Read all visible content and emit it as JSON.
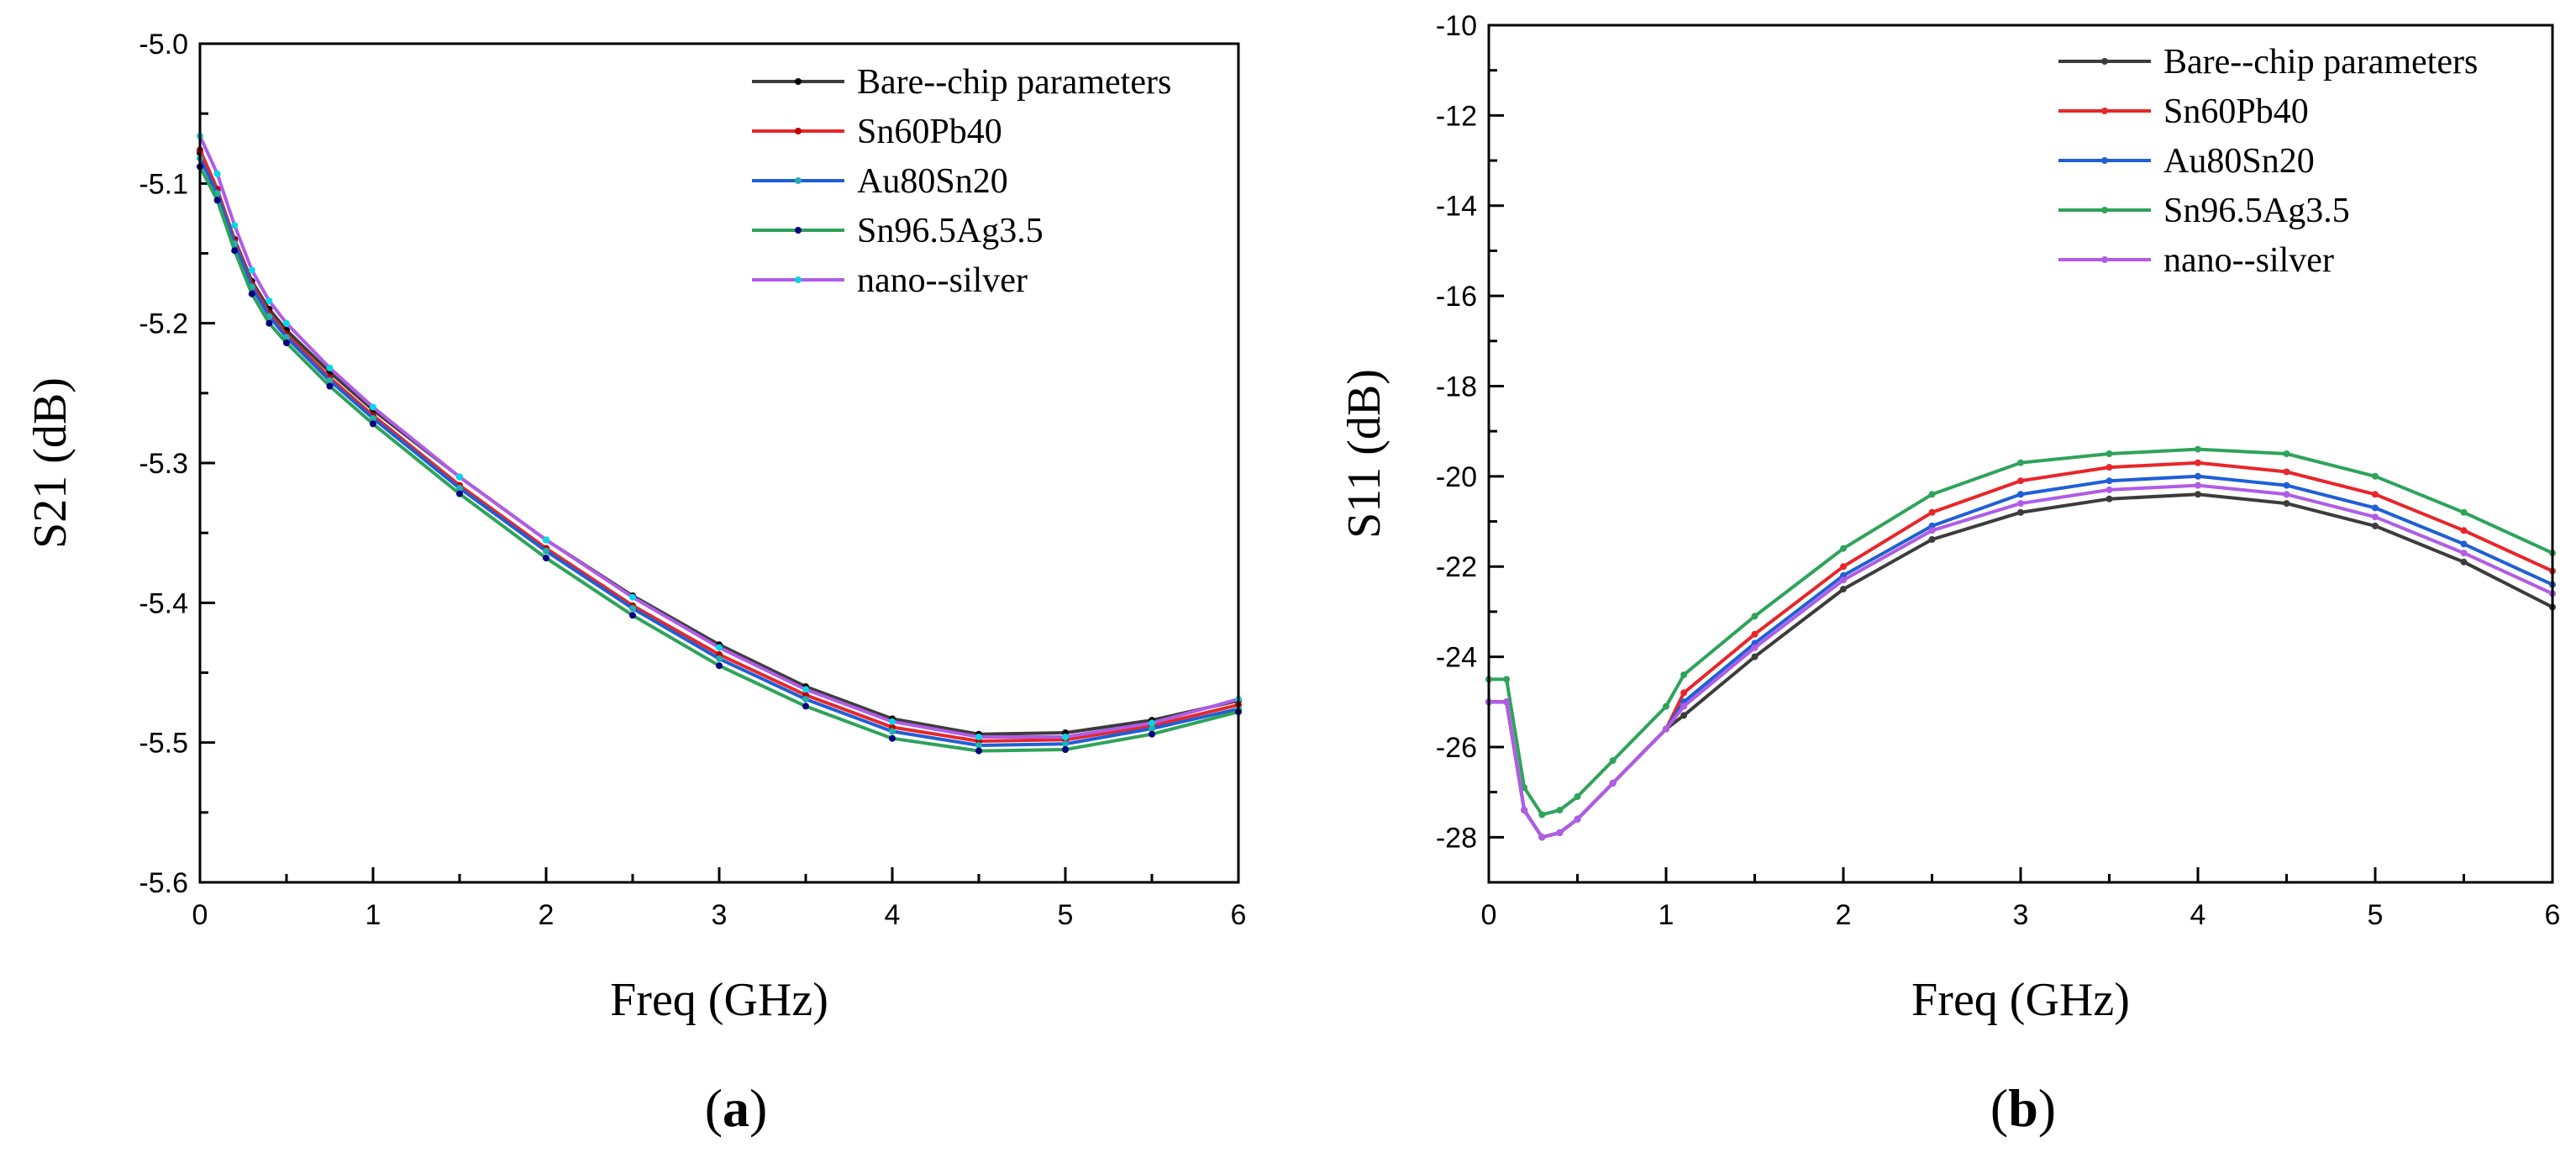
{
  "chart_data": [
    {
      "type": "line",
      "panel": "a",
      "caption_label": "a",
      "xlabel": "Freq (GHz)",
      "ylabel": "S21 (dB)",
      "xlim": [
        0,
        6
      ],
      "ylim": [
        -5.6,
        -5.0
      ],
      "xticks": [
        0,
        1,
        2,
        3,
        4,
        5,
        6
      ],
      "xtick_labels": [
        "0",
        "1",
        "2",
        "3",
        "4",
        "5",
        "6"
      ],
      "yticks": [
        -5.6,
        -5.5,
        -5.4,
        -5.3,
        -5.2,
        -5.1,
        -5.0
      ],
      "ytick_labels": [
        "-5.6",
        "-5.5",
        "-5.4",
        "-5.3",
        "-5.2",
        "-5.1",
        "-5.0"
      ],
      "legend_position": "top-right",
      "x": [
        0,
        0.1,
        0.2,
        0.3,
        0.4,
        0.5,
        0.75,
        1,
        1.5,
        2,
        2.5,
        3,
        3.5,
        4,
        4.5,
        5,
        5.5,
        6
      ],
      "series": [
        {
          "name": "Bare--chip parameters",
          "color": "#3c3c3c",
          "marker_color": "#000000",
          "values": [
            -5.078,
            -5.105,
            -5.14,
            -5.17,
            -5.19,
            -5.205,
            -5.235,
            -5.262,
            -5.31,
            -5.355,
            -5.395,
            -5.43,
            -5.46,
            -5.483,
            -5.494,
            -5.493,
            -5.484,
            -5.47
          ]
        },
        {
          "name": "Sn60Pb40",
          "color": "#e8262a",
          "marker_color": "#c00000",
          "values": [
            -5.076,
            -5.104,
            -5.141,
            -5.172,
            -5.193,
            -5.208,
            -5.239,
            -5.266,
            -5.316,
            -5.361,
            -5.402,
            -5.437,
            -5.466,
            -5.489,
            -5.499,
            -5.498,
            -5.488,
            -5.473
          ]
        },
        {
          "name": "Au80Sn20",
          "color": "#1f5fd6",
          "marker_color": "#22b0b0",
          "values": [
            -5.082,
            -5.107,
            -5.143,
            -5.174,
            -5.195,
            -5.21,
            -5.241,
            -5.268,
            -5.318,
            -5.363,
            -5.404,
            -5.44,
            -5.469,
            -5.492,
            -5.502,
            -5.501,
            -5.49,
            -5.476
          ]
        },
        {
          "name": "Sn96.5Ag3.5",
          "color": "#2ea35a",
          "marker_color": "#000080",
          "values": [
            -5.088,
            -5.112,
            -5.148,
            -5.179,
            -5.2,
            -5.214,
            -5.245,
            -5.272,
            -5.322,
            -5.368,
            -5.409,
            -5.445,
            -5.474,
            -5.497,
            -5.506,
            -5.505,
            -5.494,
            -5.478
          ]
        },
        {
          "name": "nano--silver",
          "color": "#b05ce6",
          "marker_color": "#00d8e8",
          "values": [
            -5.066,
            -5.093,
            -5.13,
            -5.162,
            -5.184,
            -5.2,
            -5.232,
            -5.26,
            -5.31,
            -5.355,
            -5.396,
            -5.432,
            -5.462,
            -5.485,
            -5.496,
            -5.496,
            -5.486,
            -5.469
          ]
        }
      ]
    },
    {
      "type": "line",
      "panel": "b",
      "caption_label": "b",
      "xlabel": "Freq (GHz)",
      "ylabel": "S11 (dB)",
      "xlim": [
        0,
        6
      ],
      "ylim": [
        -29,
        -10
      ],
      "xticks": [
        0,
        1,
        2,
        3,
        4,
        5,
        6
      ],
      "xtick_labels": [
        "0",
        "1",
        "2",
        "3",
        "4",
        "5",
        "6"
      ],
      "yticks": [
        -28,
        -26,
        -24,
        -22,
        -20,
        -18,
        -16,
        -14,
        -12,
        -10
      ],
      "ytick_labels": [
        "-28",
        "-26",
        "-24",
        "-22",
        "-20",
        "-18",
        "-16",
        "-14",
        "-12",
        "-10"
      ],
      "legend_position": "top-right",
      "x": [
        0,
        0.1,
        0.2,
        0.3,
        0.4,
        0.5,
        0.7,
        1.0,
        1.1,
        1.5,
        2,
        2.5,
        3,
        3.5,
        4,
        4.5,
        5,
        5.5,
        6
      ],
      "series": [
        {
          "name": "Bare--chip parameters",
          "color": "#3c3c3c",
          "marker_color": "#3c3c3c",
          "values": [
            -25.0,
            -25.0,
            -27.4,
            -28.0,
            -27.9,
            -27.6,
            -26.8,
            -25.6,
            -25.3,
            -24.0,
            -22.5,
            -21.4,
            -20.8,
            -20.5,
            -20.4,
            -20.6,
            -21.1,
            -21.9,
            -22.9
          ]
        },
        {
          "name": "Sn60Pb40",
          "color": "#e8262a",
          "marker_color": "#e8262a",
          "values": [
            -25.0,
            -25.0,
            -27.4,
            -28.0,
            -27.9,
            -27.6,
            -26.8,
            -25.6,
            -24.8,
            -23.5,
            -22.0,
            -20.8,
            -20.1,
            -19.8,
            -19.7,
            -19.9,
            -20.4,
            -21.2,
            -22.1
          ]
        },
        {
          "name": "Au80Sn20",
          "color": "#1f5fd6",
          "marker_color": "#1f5fd6",
          "values": [
            -25.0,
            -25.0,
            -27.4,
            -28.0,
            -27.9,
            -27.6,
            -26.8,
            -25.6,
            -25.0,
            -23.7,
            -22.2,
            -21.1,
            -20.4,
            -20.1,
            -20.0,
            -20.2,
            -20.7,
            -21.5,
            -22.4
          ]
        },
        {
          "name": "Sn96.5Ag3.5",
          "color": "#2ea35a",
          "marker_color": "#2ea35a",
          "values": [
            -24.5,
            -24.5,
            -26.9,
            -27.5,
            -27.4,
            -27.1,
            -26.3,
            -25.1,
            -24.4,
            -23.1,
            -21.6,
            -20.4,
            -19.7,
            -19.5,
            -19.4,
            -19.5,
            -20.0,
            -20.8,
            -21.7
          ]
        },
        {
          "name": "nano--silver",
          "color": "#b05ce6",
          "marker_color": "#b05ce6",
          "values": [
            -25.0,
            -25.0,
            -27.4,
            -28.0,
            -27.9,
            -27.6,
            -26.8,
            -25.6,
            -25.1,
            -23.8,
            -22.3,
            -21.2,
            -20.6,
            -20.3,
            -20.2,
            -20.4,
            -20.9,
            -21.7,
            -22.6
          ]
        }
      ]
    }
  ]
}
